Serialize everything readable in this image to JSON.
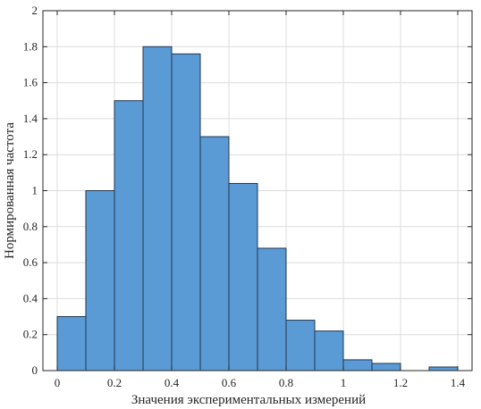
{
  "chart_data": {
    "type": "bar",
    "xlabel": "Значения экспериментальных измерений",
    "ylabel": "Нормированная частота",
    "xlim": [
      -0.05,
      1.45
    ],
    "ylim": [
      0,
      2
    ],
    "grid": true,
    "bin_width": 0.1,
    "bins": [
      {
        "start": 0.0,
        "end": 0.1,
        "value": 0.3
      },
      {
        "start": 0.1,
        "end": 0.2,
        "value": 1.0
      },
      {
        "start": 0.2,
        "end": 0.3,
        "value": 1.5
      },
      {
        "start": 0.3,
        "end": 0.4,
        "value": 1.8
      },
      {
        "start": 0.4,
        "end": 0.5,
        "value": 1.76
      },
      {
        "start": 0.5,
        "end": 0.6,
        "value": 1.3
      },
      {
        "start": 0.6,
        "end": 0.7,
        "value": 1.04
      },
      {
        "start": 0.7,
        "end": 0.8,
        "value": 0.68
      },
      {
        "start": 0.8,
        "end": 0.9,
        "value": 0.28
      },
      {
        "start": 0.9,
        "end": 1.0,
        "value": 0.22
      },
      {
        "start": 1.0,
        "end": 1.1,
        "value": 0.06
      },
      {
        "start": 1.1,
        "end": 1.2,
        "value": 0.04
      },
      {
        "start": 1.2,
        "end": 1.3,
        "value": 0.0
      },
      {
        "start": 1.3,
        "end": 1.4,
        "value": 0.02
      }
    ],
    "xticks": [
      0,
      0.2,
      0.4,
      0.6,
      0.8,
      1,
      1.2,
      1.4
    ],
    "xtick_labels": [
      "0",
      "0.2",
      "0.4",
      "0.6",
      "0.8",
      "1",
      "1.2",
      "1.4"
    ],
    "yticks": [
      0,
      0.2,
      0.4,
      0.6,
      0.8,
      1,
      1.2,
      1.4,
      1.6,
      1.8,
      2
    ],
    "ytick_labels": [
      "0",
      "0.2",
      "0.4",
      "0.6",
      "0.8",
      "1",
      "1.2",
      "1.4",
      "1.6",
      "1.8",
      "2"
    ],
    "colors": {
      "bar_fill": "#5b9bd5",
      "bar_edge": "#1f3550",
      "grid": "#dcdcdc",
      "axis": "#262626"
    }
  }
}
